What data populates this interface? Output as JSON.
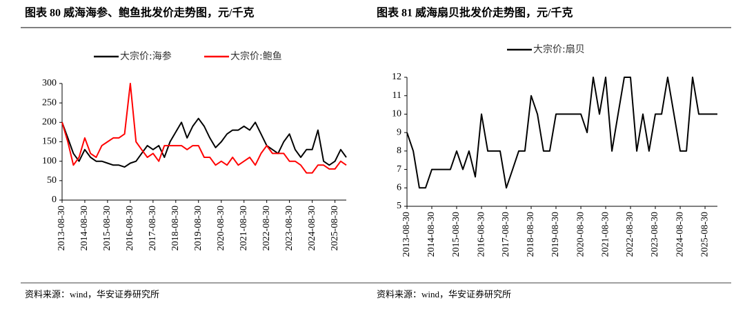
{
  "chart_data": [
    {
      "type": "line",
      "title": "图表 80 威海海参、鲍鱼批发价走势图，元/千克",
      "source": "资料来源：wind，华安证券研究所",
      "x": [
        "2013-08-30",
        "2013-11-30",
        "2014-02-28",
        "2014-05-30",
        "2014-08-30",
        "2014-11-30",
        "2015-02-28",
        "2015-05-30",
        "2015-08-30",
        "2015-11-30",
        "2016-02-28",
        "2016-05-30",
        "2016-08-30",
        "2016-11-30",
        "2017-02-28",
        "2017-05-30",
        "2017-08-30",
        "2017-11-30",
        "2018-02-28",
        "2018-05-30",
        "2018-08-30",
        "2018-11-30",
        "2019-02-28",
        "2019-05-30",
        "2019-08-30",
        "2019-11-30",
        "2020-02-28",
        "2020-05-30",
        "2020-08-30",
        "2020-11-30",
        "2021-02-28",
        "2021-05-30",
        "2021-08-30",
        "2021-11-30",
        "2022-02-28",
        "2022-05-30",
        "2022-08-30",
        "2022-11-30",
        "2023-02-28",
        "2023-05-30",
        "2023-08-30",
        "2023-11-30",
        "2024-02-28",
        "2024-05-30",
        "2024-08-30",
        "2024-11-30",
        "2025-02-28",
        "2025-05-30",
        "2025-08-30",
        "2025-11-30",
        "2026-02-28"
      ],
      "series": [
        {
          "name": "大宗价:海参",
          "color": "#000000",
          "values": [
            200,
            160,
            120,
            100,
            130,
            110,
            100,
            100,
            95,
            90,
            90,
            85,
            95,
            100,
            120,
            140,
            130,
            140,
            110,
            150,
            175,
            200,
            160,
            190,
            210,
            190,
            160,
            135,
            150,
            170,
            180,
            180,
            190,
            180,
            200,
            170,
            140,
            130,
            120,
            150,
            170,
            130,
            110,
            130,
            130,
            180,
            100,
            90,
            100,
            130,
            110
          ]
        },
        {
          "name": "大宗价:鲍鱼",
          "color": "#ff0000",
          "values": [
            200,
            150,
            90,
            110,
            160,
            120,
            110,
            140,
            150,
            160,
            160,
            170,
            300,
            150,
            130,
            110,
            120,
            100,
            140,
            140,
            140,
            140,
            130,
            140,
            140,
            110,
            110,
            90,
            100,
            90,
            110,
            90,
            100,
            110,
            90,
            120,
            140,
            120,
            120,
            120,
            100,
            100,
            90,
            70,
            70,
            90,
            90,
            80,
            80,
            100,
            90
          ]
        }
      ],
      "xlim": [
        "2013-08-30",
        "2026-02-28"
      ],
      "xticks": [
        "2013-08-30",
        "2014-08-30",
        "2015-08-30",
        "2016-08-30",
        "2017-08-30",
        "2018-08-30",
        "2019-08-30",
        "2020-08-30",
        "2021-08-30",
        "2022-08-30",
        "2023-08-30",
        "2024-08-30",
        "2025-08-30"
      ],
      "ylim": [
        0,
        300
      ],
      "yticks": [
        0,
        50,
        100,
        150,
        200,
        250,
        300
      ],
      "grid": false,
      "legend": "top"
    },
    {
      "type": "line",
      "title": "图表 81 威海扇贝批发价走势图，元/千克",
      "source": "资料来源：wind，华安证券研究所",
      "x": [
        "2013-08-30",
        "2013-11-30",
        "2014-02-28",
        "2014-05-30",
        "2014-08-30",
        "2014-11-30",
        "2015-02-28",
        "2015-05-30",
        "2015-08-30",
        "2015-11-30",
        "2016-02-28",
        "2016-05-30",
        "2016-08-30",
        "2016-11-30",
        "2017-02-28",
        "2017-05-30",
        "2017-08-30",
        "2017-11-30",
        "2018-02-28",
        "2018-05-30",
        "2018-08-30",
        "2018-11-30",
        "2019-02-28",
        "2019-05-30",
        "2019-08-30",
        "2019-11-30",
        "2020-02-28",
        "2020-05-30",
        "2020-08-30",
        "2020-11-30",
        "2021-02-28",
        "2021-05-30",
        "2021-08-30",
        "2021-11-30",
        "2022-02-28",
        "2022-05-30",
        "2022-08-30",
        "2022-11-30",
        "2023-02-28",
        "2023-05-30",
        "2023-08-30",
        "2023-11-30",
        "2024-02-28",
        "2024-05-30",
        "2024-08-30",
        "2024-11-30",
        "2025-02-28",
        "2025-05-30",
        "2025-08-30",
        "2025-11-30",
        "2026-02-28"
      ],
      "series": [
        {
          "name": "大宗价:扇贝",
          "color": "#000000",
          "values": [
            9,
            8,
            6,
            6,
            7,
            7,
            7,
            7,
            8,
            7,
            8,
            6.6,
            10,
            8,
            8,
            8,
            6,
            7,
            8,
            8,
            11,
            10,
            8,
            8,
            10,
            10,
            10,
            10,
            10,
            9,
            12,
            10,
            12,
            8,
            10,
            12,
            12,
            8,
            10,
            8,
            10,
            10,
            12,
            10,
            8,
            8,
            12,
            10,
            10,
            10,
            10
          ]
        }
      ],
      "xlim": [
        "2013-08-30",
        "2026-02-28"
      ],
      "xticks": [
        "2013-08-30",
        "2014-08-30",
        "2015-08-30",
        "2016-08-30",
        "2017-08-30",
        "2018-08-30",
        "2019-08-30",
        "2020-08-30",
        "2021-08-30",
        "2022-08-30",
        "2023-08-30",
        "2024-08-30",
        "2025-08-30"
      ],
      "ylim": [
        5,
        12
      ],
      "yticks": [
        5,
        6,
        7,
        8,
        9,
        10,
        11,
        12
      ],
      "grid": false,
      "legend": "top"
    }
  ]
}
